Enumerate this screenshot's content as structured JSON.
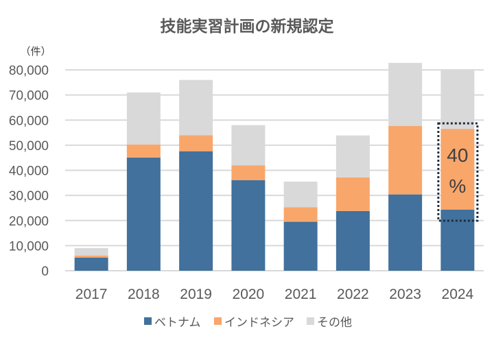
{
  "chart_data": {
    "type": "bar",
    "stacked": true,
    "title": "技能実習計画の新規認定",
    "ylabel": "（件）",
    "xlabel": "",
    "ylim": [
      0,
      80000
    ],
    "yticks": [
      0,
      10000,
      20000,
      30000,
      40000,
      50000,
      60000,
      70000,
      80000
    ],
    "ytick_labels": [
      "0",
      "10,000",
      "20,000",
      "30,000",
      "40,000",
      "50,000",
      "60,000",
      "70,000",
      "80,000"
    ],
    "grid": true,
    "categories": [
      "2017",
      "2018",
      "2019",
      "2020",
      "2021",
      "2022",
      "2023",
      "2024"
    ],
    "series": [
      {
        "name": "ベトナム",
        "color": "#41719C",
        "values": [
          5200,
          45100,
          47600,
          36100,
          19500,
          23800,
          30400,
          24300
        ]
      },
      {
        "name": "インドネシア",
        "color": "#F9A66B",
        "values": [
          800,
          5200,
          6400,
          5900,
          5800,
          13400,
          27300,
          32200
        ]
      },
      {
        "name": "その他",
        "color": "#D9D9D9",
        "values": [
          3000,
          20700,
          22000,
          16000,
          10200,
          16700,
          25100,
          23500
        ]
      }
    ],
    "legend": {
      "position": "bottom"
    },
    "annotations": [
      {
        "text": "40",
        "text2": "%",
        "category": "2024",
        "style": "dotted-box",
        "box_color": "#1F2D40"
      }
    ]
  }
}
